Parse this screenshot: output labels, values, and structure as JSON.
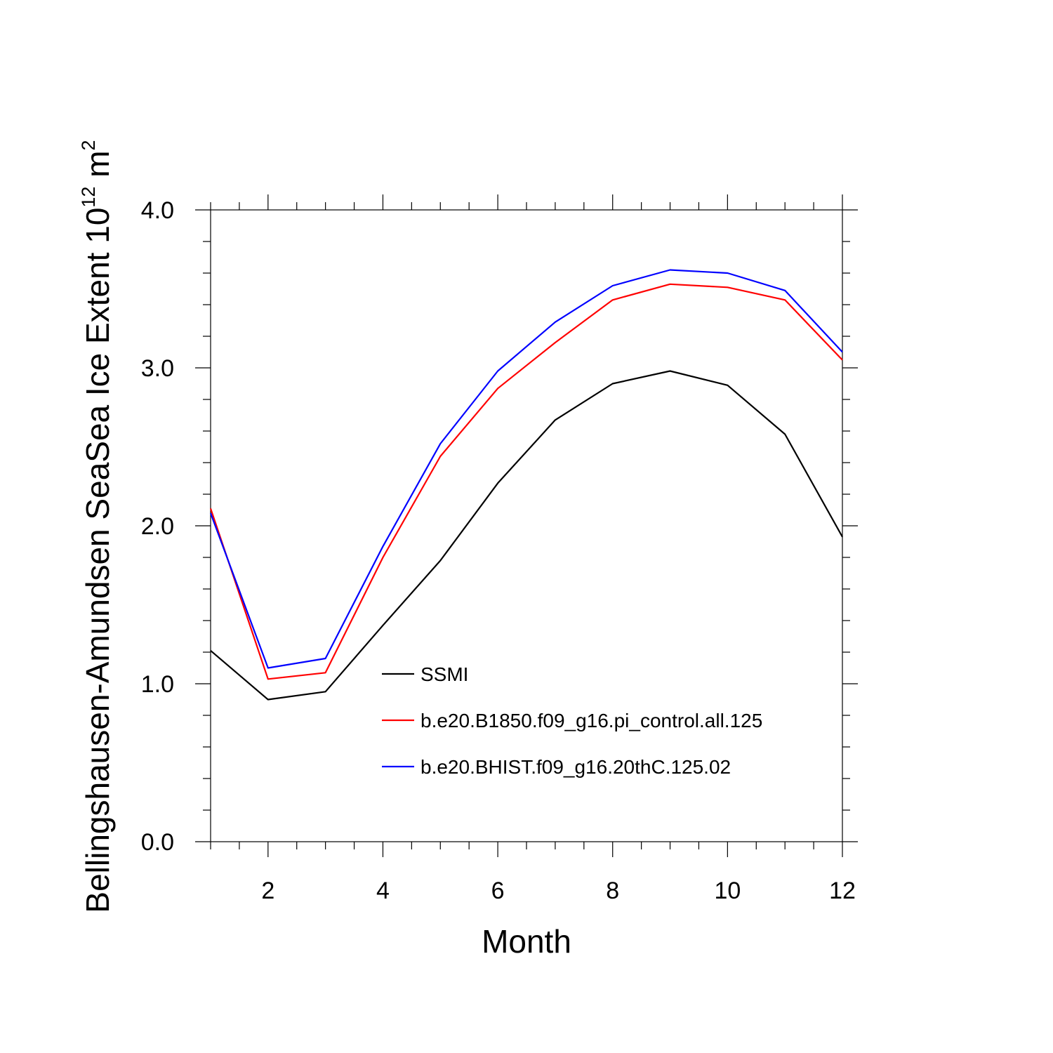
{
  "chart_data": {
    "type": "line",
    "title": "",
    "xlabel": "Month",
    "ylabel": {
      "text": "Bellingshausen-Amundsen SeaSea Ice Extent 10",
      "superscript": "12",
      "unit": " m",
      "unit_superscript": "2"
    },
    "xlim": [
      1,
      12
    ],
    "ylim": [
      0,
      4
    ],
    "x_ticks": [
      2,
      4,
      6,
      8,
      10,
      12
    ],
    "x_tick_labels": [
      "2",
      "4",
      "6",
      "8",
      "10",
      "12"
    ],
    "y_ticks": [
      0,
      1,
      2,
      3,
      4
    ],
    "y_tick_labels": [
      "0.0",
      "1.0",
      "2.0",
      "3.0",
      "4.0"
    ],
    "x": [
      1,
      2,
      3,
      4,
      5,
      6,
      7,
      8,
      9,
      10,
      11,
      12
    ],
    "series": [
      {
        "name": "SSMI",
        "color": "#000000",
        "values": [
          1.21,
          0.9,
          0.95,
          1.37,
          1.78,
          2.27,
          2.67,
          2.9,
          2.98,
          2.89,
          2.58,
          1.93
        ]
      },
      {
        "name": "b.e20.B1850.f09_g16.pi_control.all.125",
        "color": "#ff0000",
        "values": [
          2.11,
          1.03,
          1.07,
          1.8,
          2.44,
          2.87,
          3.16,
          3.43,
          3.53,
          3.51,
          3.43,
          3.05
        ]
      },
      {
        "name": "b.e20.BHIST.f09_g16.20thC.125.02",
        "color": "#0000ff",
        "values": [
          2.08,
          1.1,
          1.16,
          1.87,
          2.52,
          2.98,
          3.29,
          3.52,
          3.62,
          3.6,
          3.49,
          3.1
        ]
      }
    ],
    "legend_position": "center"
  }
}
